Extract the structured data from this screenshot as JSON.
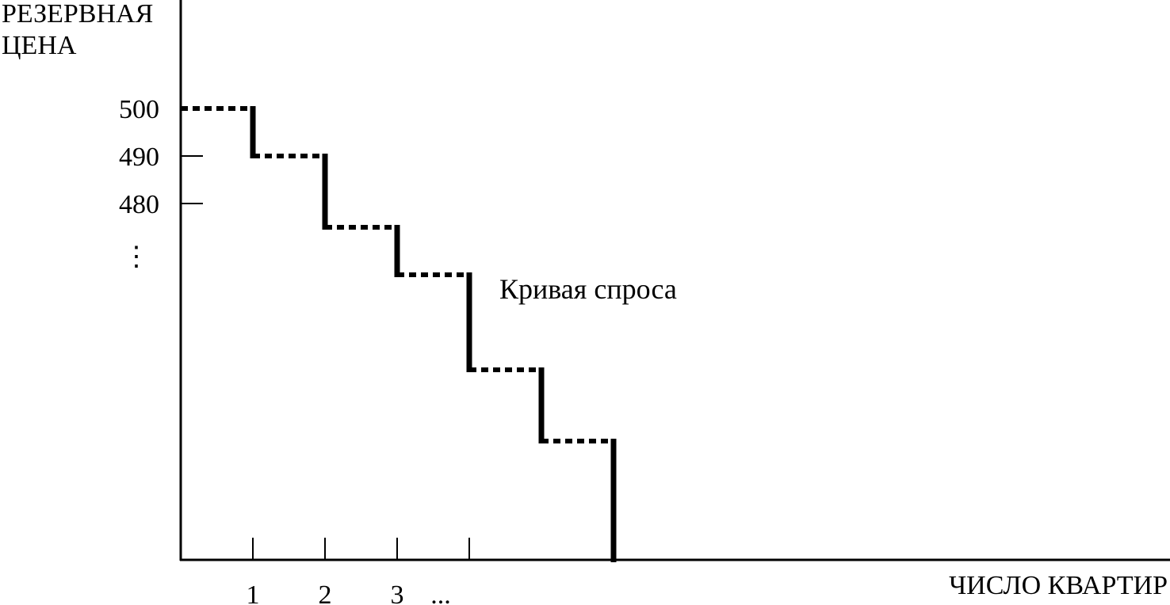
{
  "chart_data": {
    "type": "line",
    "title": "",
    "ylabel": [
      "РЕЗЕРВНАЯ",
      "ЦЕНА"
    ],
    "xlabel": "ЧИСЛО КВАРТИР",
    "x_ticks": [
      1,
      2,
      3,
      4
    ],
    "x_tick_labels": [
      "1",
      "2",
      "3",
      "..."
    ],
    "y_ticks": [
      500,
      490,
      480
    ],
    "y_tick_labels": [
      "500",
      "490",
      "480"
    ],
    "y_ellipsis": "⋮",
    "annotation": "Кривая спроса",
    "xlim": [
      0,
      13.6
    ],
    "ylim": [
      405,
      500
    ],
    "grid": false,
    "series": [
      {
        "steps": [
          {
            "x_from": 0,
            "x_to": 1,
            "y": 500
          },
          {
            "x_from": 1,
            "x_to": 2,
            "y": 490
          },
          {
            "x_from": 2,
            "x_to": 3,
            "y": 475
          },
          {
            "x_from": 3,
            "x_to": 4,
            "y": 465
          },
          {
            "x_from": 4,
            "x_to": 5,
            "y": 445
          },
          {
            "x_from": 5,
            "x_to": 6,
            "y": 430
          }
        ],
        "final_drop_x": 6
      }
    ]
  }
}
